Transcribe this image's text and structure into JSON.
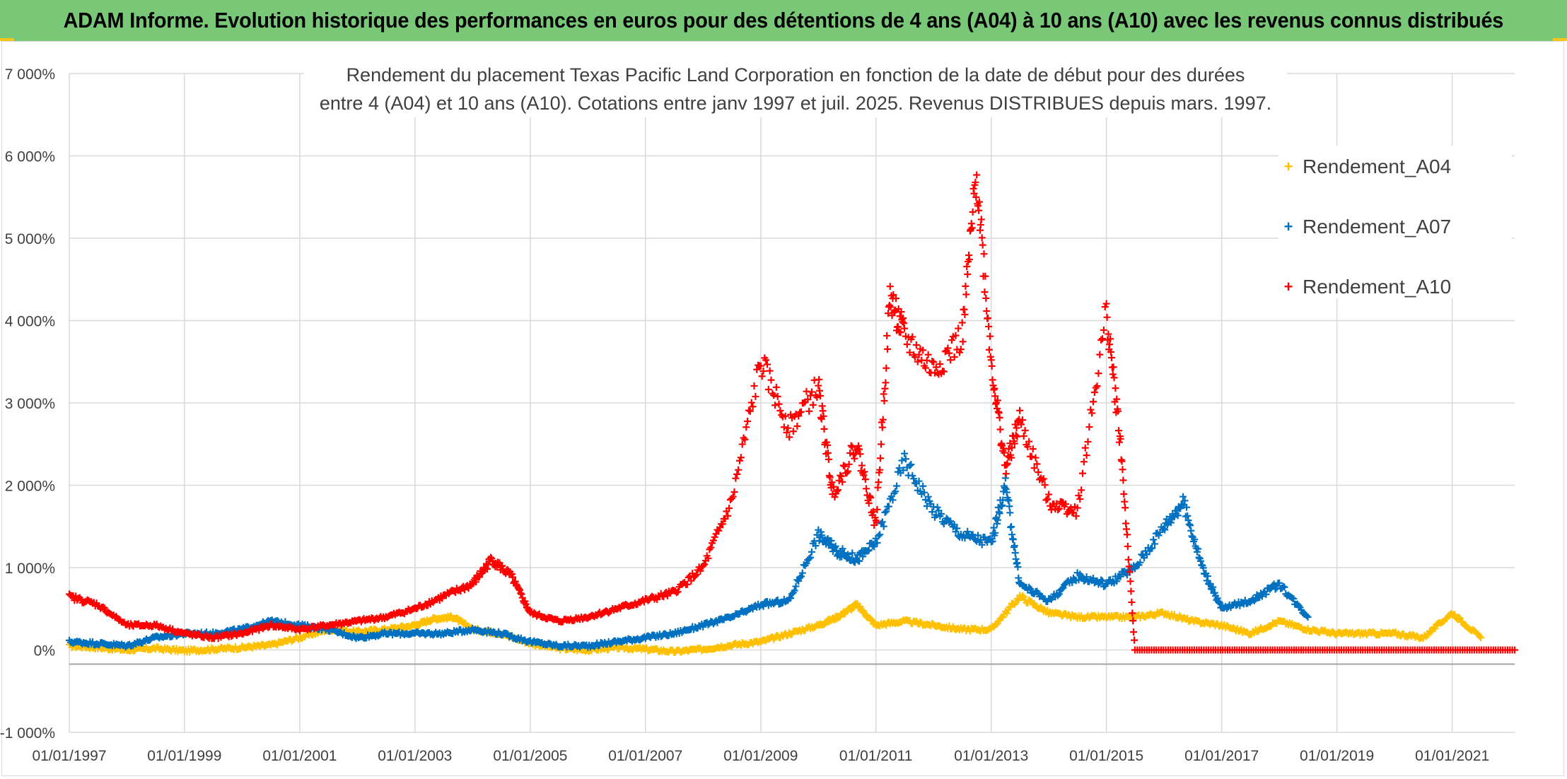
{
  "banner": {
    "title": "ADAM Informe. Evolution historique des performances en euros pour des détentions de 4 ans (A04) à 10 ans (A10) avec les revenus connus distribués"
  },
  "colors": {
    "banner_bg": "#78c878",
    "A04": "#ffc000",
    "A07": "#0070c0",
    "A10": "#ff0000",
    "grid": "#d9d9d9",
    "text": "#404040"
  },
  "chart_data": {
    "type": "scatter",
    "title_line1": "Rendement du placement Texas Pacific Land Corporation en fonction de la date de début pour des durées",
    "title_line2": "entre 4 (A04) et 10 ans (A10). Cotations entre janv 1997 et juil. 2025. Revenus DISTRIBUES depuis mars. 1997.",
    "xlabel": "",
    "ylabel": "",
    "x_type": "date",
    "xlim": [
      "1997-01-01",
      "2022-02-01"
    ],
    "ylim": [
      -1000,
      7000
    ],
    "y_unit": "%",
    "y_ticks": [
      -1000,
      0,
      1000,
      2000,
      3000,
      4000,
      5000,
      6000,
      7000
    ],
    "y_tick_labels": [
      "-1 000%",
      "0%",
      "1 000%",
      "2 000%",
      "3 000%",
      "4 000%",
      "5 000%",
      "6 000%",
      "7 000%"
    ],
    "x_ticks": [
      "1997-01-01",
      "1999-01-01",
      "2001-01-01",
      "2003-01-01",
      "2005-01-01",
      "2007-01-01",
      "2009-01-01",
      "2011-01-01",
      "2013-01-01",
      "2015-01-01",
      "2017-01-01",
      "2019-01-01",
      "2021-01-01"
    ],
    "x_tick_labels": [
      "01/01/1997",
      "01/01/1999",
      "01/01/2001",
      "01/01/2003",
      "01/01/2005",
      "01/01/2007",
      "01/01/2009",
      "01/01/2011",
      "01/01/2013",
      "01/01/2015",
      "01/01/2017",
      "01/01/2019",
      "01/01/2021"
    ],
    "grid": true,
    "legend_position": "top-right",
    "series": [
      {
        "name": "Rendement_A04",
        "color": "#ffc000",
        "x": [
          "1997-01-01",
          "1997-07-01",
          "1998-01-01",
          "1998-07-01",
          "1999-01-01",
          "1999-07-01",
          "2000-01-01",
          "2000-07-01",
          "2001-01-01",
          "2001-07-01",
          "2002-01-01",
          "2002-07-01",
          "2003-01-01",
          "2003-05-01",
          "2003-09-01",
          "2004-01-01",
          "2004-07-01",
          "2005-01-01",
          "2005-07-01",
          "2006-01-01",
          "2006-07-01",
          "2007-01-01",
          "2007-07-01",
          "2008-01-01",
          "2008-07-01",
          "2009-01-01",
          "2009-07-01",
          "2010-01-01",
          "2010-05-01",
          "2010-09-01",
          "2011-01-01",
          "2011-07-01",
          "2012-01-01",
          "2012-07-01",
          "2013-01-01",
          "2013-07-01",
          "2014-01-01",
          "2014-07-01",
          "2015-01-01",
          "2015-07-01",
          "2016-01-01",
          "2016-07-01",
          "2017-01-01",
          "2017-07-01",
          "2018-01-01",
          "2018-07-01",
          "2019-01-01",
          "2019-07-01",
          "2020-01-01",
          "2020-07-01",
          "2021-01-01",
          "2021-07-01"
        ],
        "y": [
          50,
          30,
          0,
          20,
          -10,
          10,
          30,
          60,
          150,
          250,
          220,
          250,
          300,
          380,
          400,
          250,
          200,
          80,
          20,
          0,
          30,
          10,
          -20,
          10,
          60,
          100,
          200,
          300,
          400,
          550,
          300,
          350,
          300,
          250,
          250,
          650,
          450,
          400,
          400,
          400,
          450,
          350,
          300,
          200,
          350,
          250,
          200,
          200,
          200,
          150,
          450,
          150
        ]
      },
      {
        "name": "Rendement_A07",
        "color": "#0070c0",
        "x": [
          "1997-01-01",
          "1997-07-01",
          "1998-01-01",
          "1998-07-01",
          "1999-01-01",
          "1999-07-01",
          "2000-01-01",
          "2000-07-01",
          "2001-01-01",
          "2001-07-01",
          "2002-01-01",
          "2002-07-01",
          "2003-01-01",
          "2003-07-01",
          "2004-01-01",
          "2004-07-01",
          "2005-01-01",
          "2005-07-01",
          "2006-01-01",
          "2006-07-01",
          "2007-01-01",
          "2007-07-01",
          "2008-01-01",
          "2008-07-01",
          "2009-01-01",
          "2009-07-01",
          "2010-01-01",
          "2010-05-01",
          "2010-09-01",
          "2011-01-01",
          "2011-07-01",
          "2012-01-01",
          "2012-07-01",
          "2013-01-01",
          "2013-04-01",
          "2013-07-01",
          "2014-01-01",
          "2014-07-01",
          "2015-01-01",
          "2015-07-01",
          "2016-01-01",
          "2016-05-01",
          "2016-09-01",
          "2017-01-01",
          "2017-07-01",
          "2018-01-01",
          "2018-07-01"
        ],
        "y": [
          100,
          80,
          50,
          150,
          200,
          200,
          250,
          350,
          300,
          250,
          150,
          200,
          200,
          200,
          250,
          200,
          100,
          50,
          50,
          100,
          150,
          200,
          300,
          400,
          550,
          600,
          1400,
          1200,
          1100,
          1300,
          2300,
          1700,
          1400,
          1300,
          2000,
          800,
          600,
          900,
          800,
          1000,
          1500,
          1800,
          1000,
          500,
          600,
          800,
          400
        ]
      },
      {
        "name": "Rendement_A10",
        "color": "#ff0000",
        "x": [
          "1997-01-01",
          "1997-07-01",
          "1998-01-01",
          "1998-07-01",
          "1999-01-01",
          "1999-07-01",
          "2000-01-01",
          "2000-07-01",
          "2001-01-01",
          "2001-07-01",
          "2002-01-01",
          "2002-07-01",
          "2003-01-01",
          "2003-07-01",
          "2004-01-01",
          "2004-05-01",
          "2004-09-01",
          "2005-01-01",
          "2005-07-01",
          "2006-01-01",
          "2006-07-01",
          "2007-01-01",
          "2007-07-01",
          "2008-01-01",
          "2008-07-01",
          "2009-01-01",
          "2009-07-01",
          "2010-01-01",
          "2010-04-01",
          "2010-09-01",
          "2011-01-01",
          "2011-04-01",
          "2011-07-01",
          "2012-01-01",
          "2012-07-01",
          "2012-10-01",
          "2013-01-01",
          "2013-04-01",
          "2013-07-01",
          "2014-01-01",
          "2014-07-01",
          "2015-01-01",
          "2015-04-01",
          "2015-07-01"
        ],
        "y": [
          650,
          550,
          300,
          300,
          200,
          150,
          200,
          300,
          250,
          300,
          350,
          400,
          500,
          650,
          800,
          1100,
          900,
          450,
          350,
          400,
          500,
          600,
          700,
          1000,
          1800,
          3500,
          2700,
          3200,
          1900,
          2500,
          1500,
          4300,
          3800,
          3400,
          3800,
          5800,
          3500,
          2200,
          2800,
          1800,
          1700,
          4100,
          2500,
          0
        ]
      }
    ]
  },
  "legend": {
    "marker": "+",
    "items": [
      "Rendement_A04",
      "Rendement_A07",
      "Rendement_A10"
    ]
  }
}
